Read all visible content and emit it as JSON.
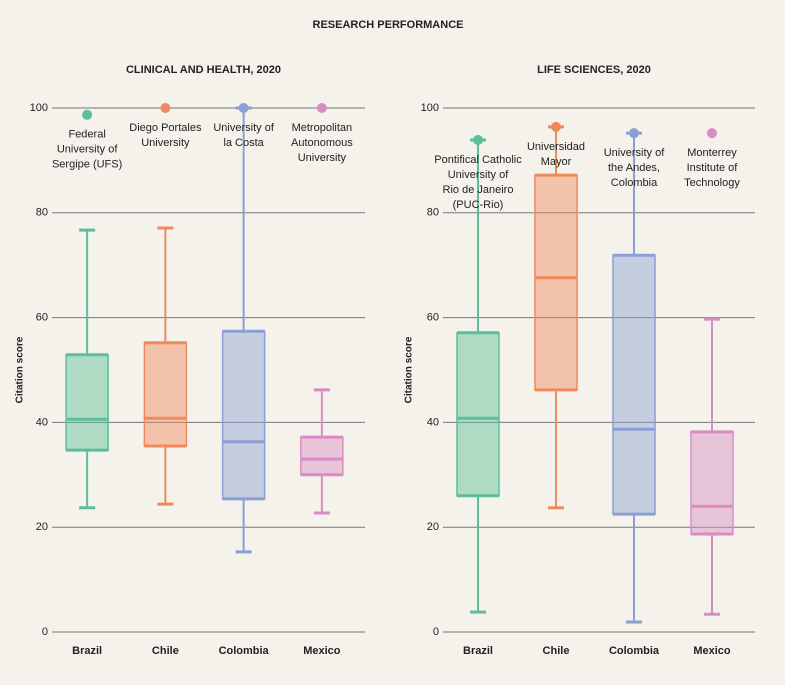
{
  "title": "RESEARCH PERFORMANCE",
  "chart_data": [
    {
      "type": "box",
      "title": "CLINICAL AND HEALTH, 2020",
      "ylabel": "Citation score",
      "categories": [
        "Brazil",
        "Chile",
        "Colombia",
        "Mexico"
      ],
      "colors": [
        "#5cbf9a",
        "#f08a5d",
        "#8b9fd4",
        "#d98cc4"
      ],
      "boxes": [
        {
          "low": 23.7,
          "q1": 34.7,
          "median": 40.6,
          "q3": 52.9,
          "high": 76.7
        },
        {
          "low": 24.4,
          "q1": 35.5,
          "median": 40.8,
          "q3": 55.2,
          "high": 77.1
        },
        {
          "low": 15.3,
          "q1": 25.4,
          "median": 36.3,
          "q3": 57.4,
          "high": 100
        },
        {
          "low": 22.7,
          "q1": 30.0,
          "median": 33.0,
          "q3": 37.2,
          "high": 46.2
        }
      ],
      "outliers": [
        98.7,
        100,
        100,
        100
      ],
      "outlier_labels": [
        [
          "Federal",
          "University of",
          "Sergipe (UFS)"
        ],
        [
          "Diego Portales",
          "University"
        ],
        [
          "University of",
          "la Costa"
        ],
        [
          "Metropolitan",
          "Autonomous",
          "University"
        ]
      ],
      "ylim": [
        0,
        100
      ],
      "yticks": [
        0,
        20,
        40,
        60,
        80,
        100
      ],
      "grid": true
    },
    {
      "type": "box",
      "title": "LIFE SCIENCES, 2020",
      "ylabel": "Citation score",
      "categories": [
        "Brazil",
        "Chile",
        "Colombia",
        "Mexico"
      ],
      "colors": [
        "#5cbf9a",
        "#f08a5d",
        "#8b9fd4",
        "#d98cc4"
      ],
      "boxes": [
        {
          "low": 3.8,
          "q1": 26.0,
          "median": 40.8,
          "q3": 57.1,
          "high": 93.9
        },
        {
          "low": 23.7,
          "q1": 46.2,
          "median": 67.6,
          "q3": 87.2,
          "high": 96.4
        },
        {
          "low": 1.9,
          "q1": 22.5,
          "median": 38.7,
          "q3": 71.9,
          "high": 95.2
        },
        {
          "low": 3.4,
          "q1": 18.7,
          "median": 24.0,
          "q3": 38.2,
          "high": 59.7
        }
      ],
      "outliers": [
        93.9,
        96.4,
        95.2,
        95.2
      ],
      "outlier_labels": [
        [
          "Pontifical Catholic",
          "University of",
          "Rio de Janeiro",
          "(PUC-Rio)"
        ],
        [
          "Universidad",
          "Mayor"
        ],
        [
          "University of",
          "the Andes,",
          "Colombia"
        ],
        [
          "Monterrey",
          "Institute of",
          "Technology"
        ]
      ],
      "ylim": [
        0,
        100
      ],
      "yticks": [
        0,
        20,
        40,
        60,
        80,
        100
      ],
      "grid": true
    }
  ]
}
